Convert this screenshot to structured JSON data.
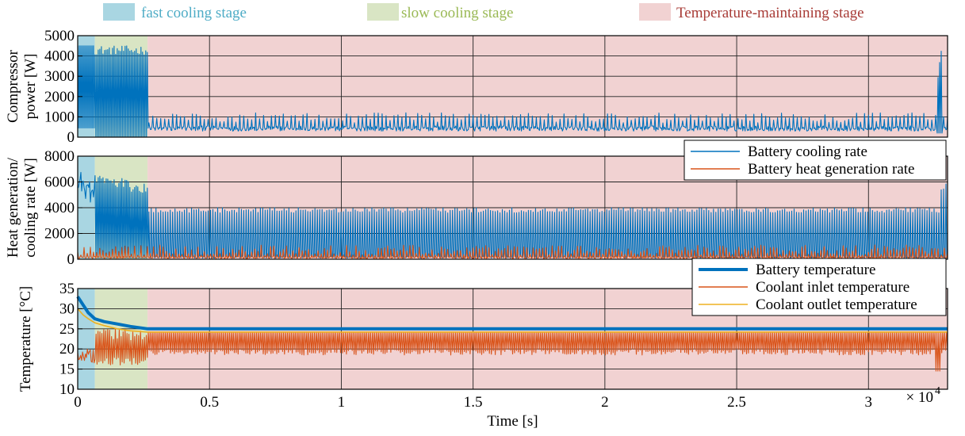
{
  "stage_legend": [
    {
      "label": "fast cooling stage",
      "color": "#a9d6e2",
      "text_color": "#4eacc6"
    },
    {
      "label": "slow cooling stage",
      "color": "#d9e5c4",
      "text_color": "#9ab955"
    },
    {
      "label": "Temperature-maintaining stage",
      "color": "#f1d2d2",
      "text_color": "#a83b36"
    }
  ],
  "colors": {
    "blue": "#0072bd",
    "orange": "#d95319",
    "yellow": "#edb120",
    "grid": "#000000"
  },
  "chart_data": [
    {
      "type": "line",
      "panel": "compressor-power",
      "ylabel": "Compressor power [W]",
      "ylabel_lines": [
        "Compressor",
        "power [W]"
      ],
      "ylim": [
        0,
        5000
      ],
      "yticks": [
        0,
        1000,
        2000,
        3000,
        4000,
        5000
      ],
      "xlim": [
        0,
        33000
      ],
      "grid": true,
      "stages": [
        {
          "name": "fast cooling stage",
          "x": [
            0,
            650
          ]
        },
        {
          "name": "slow cooling stage",
          "x": [
            650,
            2650
          ]
        },
        {
          "name": "Temperature-maintaining stage",
          "x": [
            2650,
            33000
          ]
        }
      ],
      "series": [
        {
          "name": "",
          "color": "#0072bd",
          "description_points": {
            "x": [
              0,
              650,
              650,
              2650,
              2650,
              32500,
              32750,
              32900,
              33000
            ],
            "y_max": [
              4500,
              4500,
              4500,
              4500,
              1200,
              1200,
              4300,
              3300,
              1000
            ],
            "y_min": [
              450,
              450,
              0,
              0,
              0,
              0,
              0,
              0,
              0
            ]
          }
        }
      ]
    },
    {
      "type": "line",
      "panel": "heat-generation-cooling-rate",
      "ylabel": "Heat generation/ cooling rate [W]",
      "ylabel_lines": [
        "Heat generation/",
        "cooling rate [W]"
      ],
      "ylim": [
        0,
        8000
      ],
      "yticks": [
        0,
        2000,
        4000,
        6000,
        8000
      ],
      "xlim": [
        0,
        33000
      ],
      "grid": true,
      "legend": "top-right",
      "series": [
        {
          "name": "Battery cooling rate",
          "color": "#0072bd",
          "description_points": {
            "x": [
              0,
              650,
              650,
              2650,
              2650,
              33000
            ],
            "y_max": [
              7200,
              5800,
              6800,
              5800,
              4000,
              4000
            ],
            "y_min": [
              5000,
              4200,
              0,
              0,
              0,
              0
            ]
          }
        },
        {
          "name": "Battery heat generation rate",
          "color": "#d95319",
          "description_points": {
            "x": [
              0,
              33000
            ],
            "y_max": [
              1200,
              1200
            ],
            "y_min": [
              0,
              0
            ]
          }
        }
      ]
    },
    {
      "type": "line",
      "panel": "temperature",
      "ylabel": "Temperature [°C]",
      "ylim": [
        10,
        35
      ],
      "yticks": [
        10,
        15,
        20,
        25,
        30,
        35
      ],
      "xlim": [
        0,
        33000
      ],
      "xticks": [
        0,
        5000,
        10000,
        15000,
        20000,
        25000,
        30000
      ],
      "xtick_labels": [
        "0",
        "0.5",
        "1",
        "1.5",
        "2",
        "2.5",
        "3"
      ],
      "xlabel": "Time [s]",
      "x_multiplier_label": "× 10",
      "x_multiplier_exp": "4",
      "grid": true,
      "legend": "top-right",
      "series": [
        {
          "name": "Battery temperature",
          "color": "#0072bd",
          "x": [
            0,
            200,
            400,
            650,
            1000,
            1500,
            2000,
            2650,
            33000
          ],
          "y": [
            33,
            31,
            29,
            27.5,
            26.8,
            26.2,
            25.6,
            25,
            25
          ]
        },
        {
          "name": "Coolant inlet temperature",
          "color": "#d95319",
          "description_points": {
            "x": [
              0,
              650,
              650,
              2650,
              2650,
              32600,
              32700,
              33000
            ],
            "y_max": [
              21,
              20,
              26,
              24.5,
              24.5,
              24.5,
              24.5,
              24.5
            ],
            "y_min": [
              17,
              16,
              16,
              15,
              18.5,
              18.5,
              14.5,
              18.5
            ]
          }
        },
        {
          "name": "Coolant outlet temperature",
          "color": "#edb120",
          "x": [
            0,
            200,
            400,
            650,
            1000,
            1500,
            2000,
            2650,
            33000
          ],
          "y": [
            30,
            28.5,
            27.5,
            26.5,
            25.8,
            25,
            24.5,
            24.2,
            24.2
          ]
        }
      ]
    }
  ]
}
